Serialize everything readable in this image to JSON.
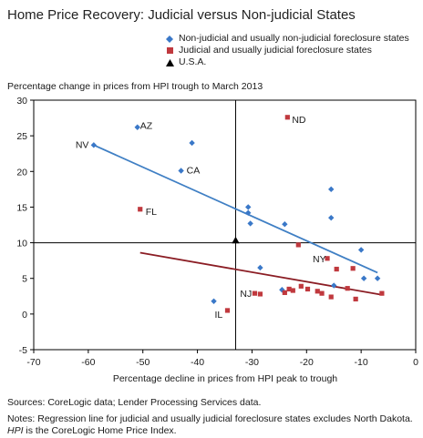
{
  "title": "Home Price Recovery: Judicial versus Non-judicial States",
  "legend": [
    {
      "label": "Non-judicial and usually non-judicial foreclosure states",
      "color": "#3a78c8",
      "marker": "diamond"
    },
    {
      "label": "Judicial and usually judicial foreclosure states",
      "color": "#c0393e",
      "marker": "square"
    },
    {
      "label": "U.S.A.",
      "color": "#000000",
      "marker": "triangle"
    }
  ],
  "ylabel": "Percentage change in prices from HPI trough to March 2013",
  "xlabel": "Percentage decline in prices from HPI peak to trough",
  "sources": "Sources: CoreLogic data; Lender Processing Services data.",
  "notes_line1": "Notes: Regression line for judicial and usually judicial foreclosure states excludes North Dakota.",
  "notes_line2_em": "HPI",
  "notes_line2_rest": " is the CoreLogic Home Price Index.",
  "chart_data": {
    "type": "scatter",
    "title": "Home Price Recovery: Judicial versus Non-judicial States",
    "xlabel": "Percentage decline in prices from HPI peak to trough",
    "ylabel": "Percentage change in prices from HPI trough to March 2013",
    "xlim": [
      -70,
      0
    ],
    "ylim": [
      -5,
      30
    ],
    "xticks": [
      -70,
      -60,
      -50,
      -40,
      -30,
      -20,
      -10,
      0
    ],
    "yticks": [
      -5,
      0,
      5,
      10,
      15,
      20,
      25,
      30
    ],
    "legend_position": "top-right",
    "reference_lines": {
      "x": -33,
      "y": 10
    },
    "series": [
      {
        "name": "Non-judicial and usually non-judicial foreclosure states",
        "marker": "diamond",
        "color": "#3a78c8",
        "points": [
          {
            "x": -59,
            "y": 23.7,
            "label": "NV"
          },
          {
            "x": -51,
            "y": 26.2,
            "label": "AZ"
          },
          {
            "x": -41,
            "y": 24,
            "label": ""
          },
          {
            "x": -43,
            "y": 20.1,
            "label": "CA"
          },
          {
            "x": -30.7,
            "y": 15,
            "label": ""
          },
          {
            "x": -30.7,
            "y": 14.2,
            "label": ""
          },
          {
            "x": -30.3,
            "y": 12.7,
            "label": ""
          },
          {
            "x": -24,
            "y": 12.6,
            "label": ""
          },
          {
            "x": -15.5,
            "y": 17.5,
            "label": ""
          },
          {
            "x": -15.5,
            "y": 13.5,
            "label": ""
          },
          {
            "x": -10,
            "y": 9,
            "label": ""
          },
          {
            "x": -7,
            "y": 5,
            "label": ""
          },
          {
            "x": -9.5,
            "y": 5,
            "label": ""
          },
          {
            "x": -28.5,
            "y": 6.5,
            "label": ""
          },
          {
            "x": -24.5,
            "y": 3.4,
            "label": ""
          },
          {
            "x": -15,
            "y": 4,
            "label": ""
          },
          {
            "x": -37,
            "y": 1.8,
            "label": ""
          }
        ],
        "regression": {
          "x": [
            -59,
            -7
          ],
          "y": [
            23.7,
            5.8
          ]
        }
      },
      {
        "name": "Judicial and usually judicial foreclosure states",
        "marker": "square",
        "color": "#c0393e",
        "points": [
          {
            "x": -23.5,
            "y": 27.6,
            "label": "ND"
          },
          {
            "x": -50.5,
            "y": 14.7,
            "label": "FL"
          },
          {
            "x": -21.5,
            "y": 9.7,
            "label": ""
          },
          {
            "x": -16.2,
            "y": 7.8,
            "label": "NY"
          },
          {
            "x": -14.5,
            "y": 6.3,
            "label": ""
          },
          {
            "x": -11.5,
            "y": 6.4,
            "label": ""
          },
          {
            "x": -29.5,
            "y": 2.9,
            "label": "NJ"
          },
          {
            "x": -28.5,
            "y": 2.8,
            "label": ""
          },
          {
            "x": -24,
            "y": 3,
            "label": ""
          },
          {
            "x": -23.2,
            "y": 3.5,
            "label": ""
          },
          {
            "x": -22.5,
            "y": 3.3,
            "label": ""
          },
          {
            "x": -21,
            "y": 3.9,
            "label": ""
          },
          {
            "x": -19.8,
            "y": 3.5,
            "label": ""
          },
          {
            "x": -18,
            "y": 3.2,
            "label": ""
          },
          {
            "x": -17.2,
            "y": 2.9,
            "label": ""
          },
          {
            "x": -15.5,
            "y": 2.4,
            "label": ""
          },
          {
            "x": -12.5,
            "y": 3.6,
            "label": ""
          },
          {
            "x": -11,
            "y": 2.1,
            "label": ""
          },
          {
            "x": -6.2,
            "y": 2.9,
            "label": ""
          },
          {
            "x": -34.5,
            "y": 0.5,
            "label": "IL"
          }
        ],
        "regression": {
          "x": [
            -50.5,
            -6.2
          ],
          "y": [
            8.6,
            2.7
          ]
        }
      },
      {
        "name": "U.S.A.",
        "marker": "triangle",
        "color": "#000000",
        "points": [
          {
            "x": -33,
            "y": 10.3,
            "label": ""
          }
        ]
      }
    ]
  }
}
